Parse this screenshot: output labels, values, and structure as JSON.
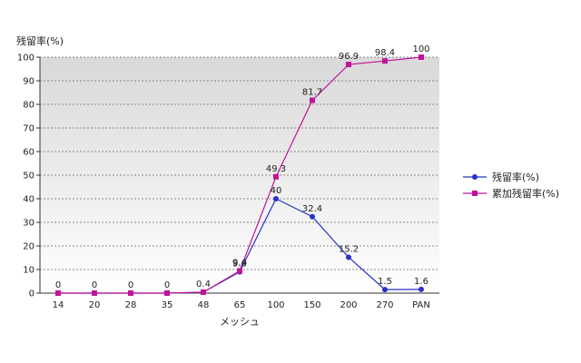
{
  "chart_data": {
    "type": "line",
    "title": "",
    "xlabel": "メッシュ",
    "ylabel": "残留率(%)",
    "ylim": [
      0,
      100
    ],
    "yticks": [
      0,
      10,
      20,
      30,
      40,
      50,
      60,
      70,
      80,
      90,
      100
    ],
    "categories": [
      "14",
      "20",
      "28",
      "35",
      "48",
      "65",
      "100",
      "150",
      "200",
      "270",
      "PAN"
    ],
    "grid": true,
    "legend_position": "right",
    "series": [
      {
        "name": "残留率(%)",
        "color": "#2633c9",
        "marker": "circle",
        "values": [
          0,
          0,
          0,
          0,
          0.4,
          9.0,
          40,
          32.4,
          15.2,
          1.5,
          1.6
        ],
        "labels": [
          "0",
          "0",
          "0",
          "0",
          "0.4",
          "9.0",
          "40",
          "32.4",
          "15.2",
          "1.5",
          "1.6"
        ]
      },
      {
        "name": "累加残留率(%)",
        "color": "#c0139a",
        "marker": "square",
        "values": [
          0,
          0,
          0,
          0,
          0.4,
          9.4,
          49.3,
          81.7,
          96.9,
          98.4,
          100
        ],
        "labels": [
          "",
          "",
          "",
          "",
          "",
          "9.4",
          "49.3",
          "81.7",
          "96.9",
          "98.4",
          "100"
        ]
      }
    ]
  }
}
